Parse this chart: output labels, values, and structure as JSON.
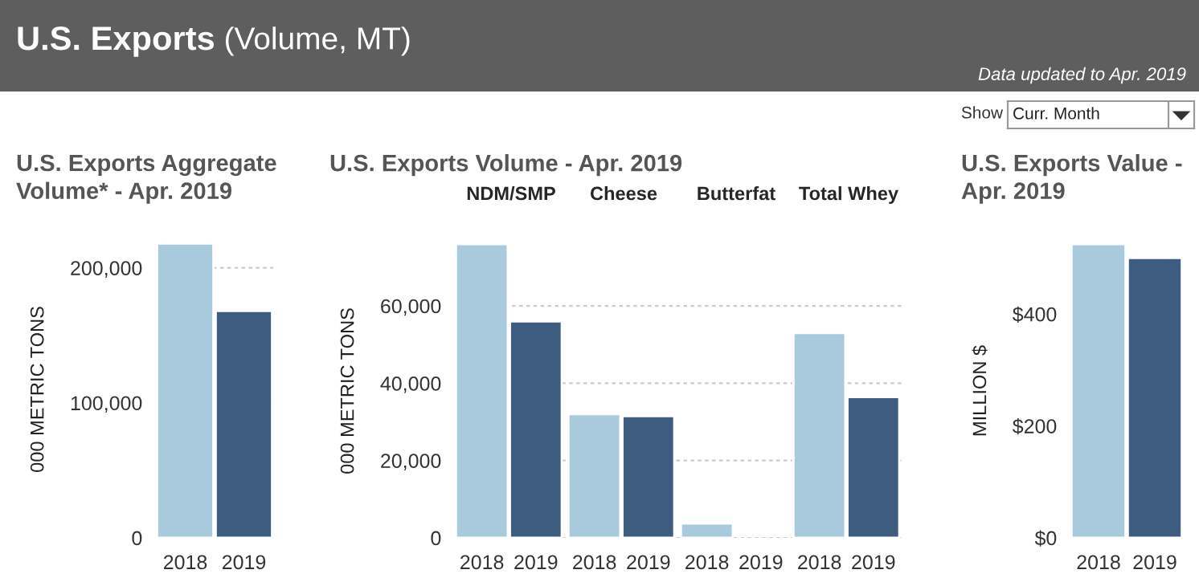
{
  "chart_data": [
    {
      "type": "other",
      "title": "U.S. Exports",
      "subtitle": "(Volume, MT)",
      "annotations": [
        "Data updated to Apr. 2019",
        "Show",
        "Curr. Month"
      ]
    },
    {
      "type": "bar",
      "title": "U.S. Exports Aggregate Volume* - Apr. 2019",
      "ylabel": "000 METRIC TONS",
      "categories": [
        "2018",
        "2019"
      ],
      "values": [
        218000,
        168000
      ],
      "colors": [
        "#a9cadd",
        "#3d5c80"
      ],
      "ylim": [
        0,
        220000
      ],
      "yticks": [
        {
          "value": 0,
          "label": "0"
        },
        {
          "value": 100000,
          "label": "100,000"
        },
        {
          "value": 200000,
          "label": "200,000"
        }
      ],
      "grid": "y"
    },
    {
      "type": "bar",
      "title": "U.S. Exports Volume - Apr. 2019",
      "ylabel": "000 METRIC TONS",
      "categories": [
        "NDM/SMP",
        "Cheese",
        "Butterfat",
        "Total Whey"
      ],
      "series": [
        {
          "name": "2018",
          "color": "#a9cadd",
          "values": [
            76000,
            32000,
            3700,
            53000
          ]
        },
        {
          "name": "2019",
          "color": "#3d5c80",
          "values": [
            56000,
            31500,
            null,
            36400
          ]
        }
      ],
      "ylim": [
        0,
        76000
      ],
      "yticks": [
        {
          "value": 0,
          "label": "0"
        },
        {
          "value": 20000,
          "label": "20,000"
        },
        {
          "value": 40000,
          "label": "40,000"
        },
        {
          "value": 60000,
          "label": "60,000"
        }
      ],
      "grid": "y"
    },
    {
      "type": "bar",
      "title": "U.S. Exports Value - Apr. 2019",
      "ylabel": "MILLION $",
      "categories": [
        "2018",
        "2019"
      ],
      "values": [
        525,
        500
      ],
      "colors": [
        "#a9cadd",
        "#3d5c80"
      ],
      "ylim": [
        0,
        525
      ],
      "yticks": [
        {
          "value": 0,
          "label": "$0"
        },
        {
          "value": 200,
          "label": "$200"
        },
        {
          "value": 400,
          "label": "$400"
        }
      ],
      "grid": "y"
    }
  ]
}
